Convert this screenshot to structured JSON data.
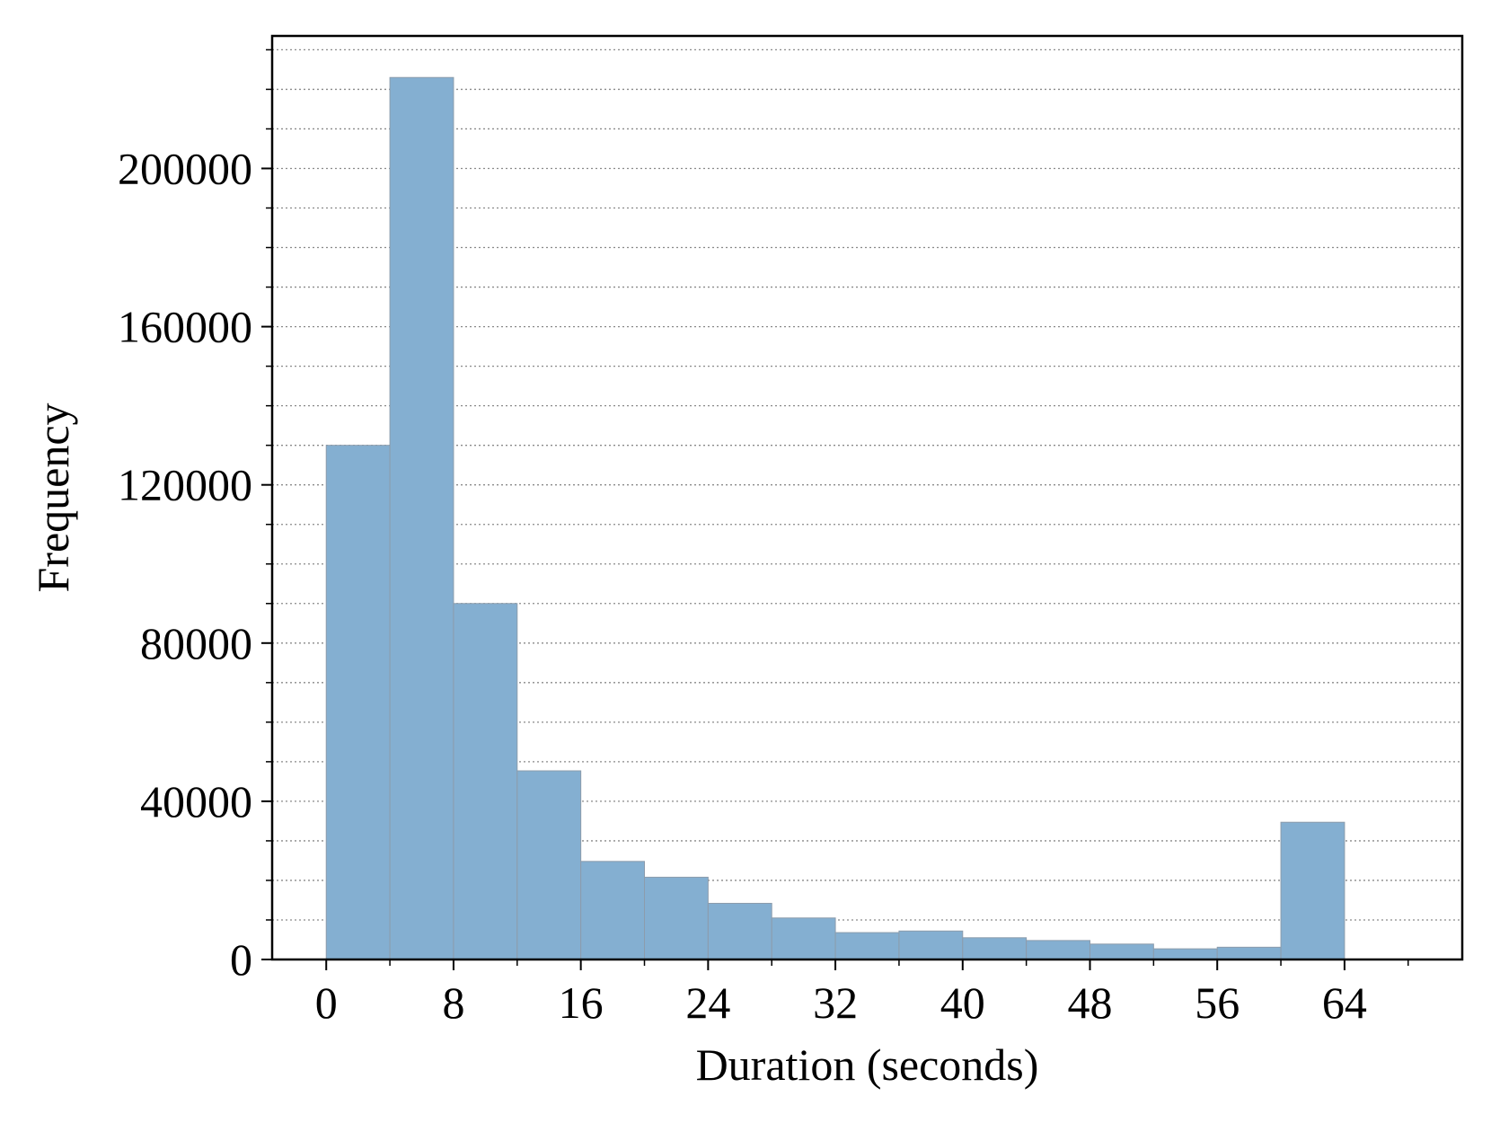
{
  "chart_data": {
    "type": "bar",
    "title": "",
    "xlabel": "Duration (seconds)",
    "ylabel": "Frequency",
    "bins": [
      {
        "start": 0,
        "end": 4,
        "value": 130000
      },
      {
        "start": 4,
        "end": 8,
        "value": 223000
      },
      {
        "start": 8,
        "end": 12,
        "value": 90000
      },
      {
        "start": 12,
        "end": 16,
        "value": 47700
      },
      {
        "start": 16,
        "end": 20,
        "value": 24800
      },
      {
        "start": 20,
        "end": 24,
        "value": 20800
      },
      {
        "start": 24,
        "end": 28,
        "value": 14200
      },
      {
        "start": 28,
        "end": 32,
        "value": 10500
      },
      {
        "start": 32,
        "end": 36,
        "value": 6800
      },
      {
        "start": 36,
        "end": 40,
        "value": 7200
      },
      {
        "start": 40,
        "end": 44,
        "value": 5500
      },
      {
        "start": 44,
        "end": 48,
        "value": 4800
      },
      {
        "start": 48,
        "end": 52,
        "value": 3900
      },
      {
        "start": 52,
        "end": 56,
        "value": 2700
      },
      {
        "start": 56,
        "end": 60,
        "value": 3100
      },
      {
        "start": 60,
        "end": 64,
        "value": 34700
      }
    ],
    "xlim": [
      -3.4,
      71.4
    ],
    "ylim": [
      0,
      233500
    ],
    "xticks": [
      0,
      8,
      16,
      24,
      32,
      40,
      48,
      56,
      64
    ],
    "xtick_labels": [
      "0",
      "8",
      "16",
      "24",
      "32",
      "40",
      "48",
      "56",
      "64"
    ],
    "x_minor_step": 4,
    "yticks": [
      0,
      40000,
      80000,
      120000,
      160000,
      200000
    ],
    "ytick_labels": [
      "0",
      "40000",
      "80000",
      "120000",
      "160000",
      "200000"
    ],
    "y_minor_step": 10000,
    "grid": {
      "axis": "y",
      "major": true,
      "minor": true,
      "style": "dotted"
    },
    "colors": {
      "bar_fill": "#84afd1",
      "bar_edge": "#8c9cac",
      "grid": "#8a8a8a",
      "axis": "#000000"
    }
  }
}
